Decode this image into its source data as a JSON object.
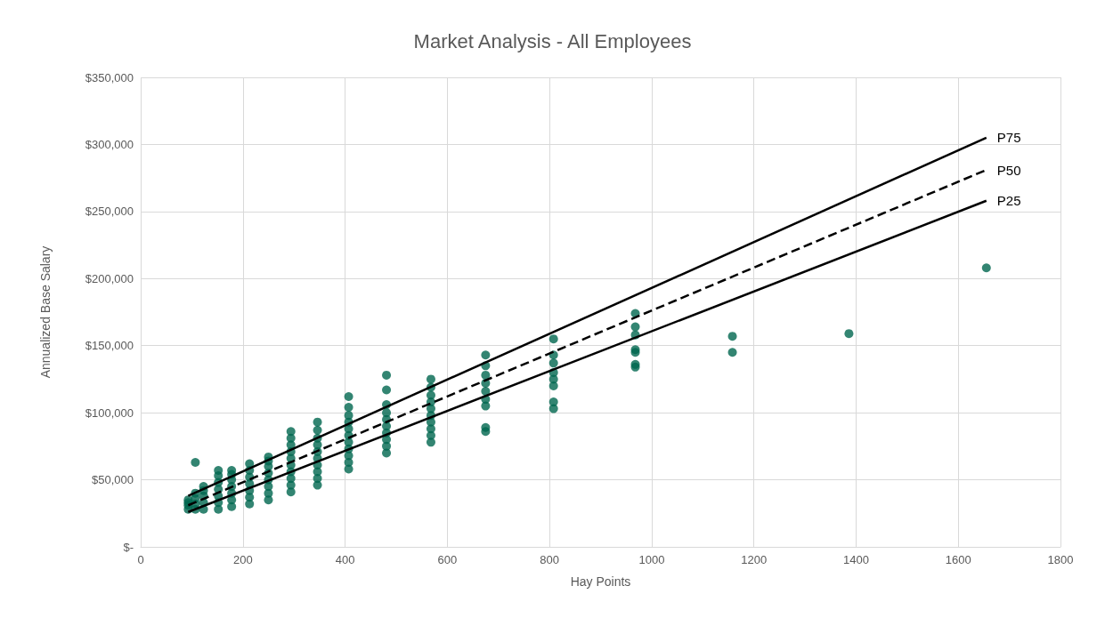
{
  "chart_data": {
    "type": "scatter",
    "title": "Market Analysis - All Employees",
    "xlabel": "Hay Points",
    "ylabel": "Annualized Base Salary",
    "xlim": [
      0,
      1800
    ],
    "xticks": [
      0,
      200,
      400,
      600,
      800,
      1000,
      1200,
      1400,
      1600,
      1800
    ],
    "ylim": [
      0,
      350000
    ],
    "yticks": [
      {
        "value": 0,
        "label": "$-"
      },
      {
        "value": 50000,
        "label": "$50,000"
      },
      {
        "value": 100000,
        "label": "$100,000"
      },
      {
        "value": 150000,
        "label": "$150,000"
      },
      {
        "value": 200000,
        "label": "$200,000"
      },
      {
        "value": 250000,
        "label": "$250,000"
      },
      {
        "value": 300000,
        "label": "$300,000"
      },
      {
        "value": 350000,
        "label": "$350,000"
      }
    ],
    "grid": true,
    "legend": false,
    "series": [
      {
        "color": "#00664f",
        "marker": "circle",
        "x": [
          93,
          93,
          93,
          93,
          107,
          107,
          107,
          107,
          107,
          123,
          123,
          123,
          123,
          123,
          152,
          152,
          152,
          152,
          152,
          152,
          152,
          178,
          178,
          178,
          178,
          178,
          178,
          178,
          213,
          213,
          213,
          213,
          213,
          213,
          213,
          250,
          250,
          250,
          250,
          250,
          250,
          250,
          250,
          294,
          294,
          294,
          294,
          294,
          294,
          294,
          294,
          294,
          294,
          346,
          346,
          346,
          346,
          346,
          346,
          346,
          346,
          346,
          346,
          407,
          407,
          407,
          407,
          407,
          407,
          407,
          407,
          407,
          407,
          407,
          481,
          481,
          481,
          481,
          481,
          481,
          481,
          481,
          481,
          481,
          568,
          568,
          568,
          568,
          568,
          568,
          568,
          568,
          568,
          568,
          675,
          675,
          675,
          675,
          675,
          675,
          675,
          675,
          675,
          808,
          808,
          808,
          808,
          808,
          808,
          808,
          808,
          968,
          968,
          968,
          968,
          968,
          968,
          968,
          1158,
          1158,
          1386,
          1655
        ],
        "values": [
          28000,
          31000,
          33000,
          35000,
          28000,
          32000,
          36000,
          40000,
          63000,
          28000,
          33000,
          38000,
          42000,
          45000,
          28000,
          33000,
          38000,
          43000,
          48000,
          53000,
          57000,
          30000,
          35000,
          40000,
          45000,
          50000,
          54000,
          57000,
          32000,
          37000,
          42000,
          47000,
          52000,
          57000,
          62000,
          35000,
          40000,
          45000,
          50000,
          55000,
          60000,
          64000,
          67000,
          41000,
          46000,
          51000,
          56000,
          61000,
          66000,
          71000,
          76000,
          81000,
          86000,
          46000,
          51000,
          56000,
          61000,
          66000,
          71000,
          76000,
          81000,
          87000,
          93000,
          58000,
          63000,
          68000,
          73000,
          78000,
          83000,
          88000,
          93000,
          98000,
          104000,
          112000,
          70000,
          75000,
          80000,
          85000,
          90000,
          95000,
          100000,
          106000,
          117000,
          128000,
          78000,
          83000,
          88000,
          93000,
          98000,
          103000,
          108000,
          113000,
          119000,
          125000,
          86000,
          89000,
          105000,
          110000,
          116000,
          122000,
          128000,
          135000,
          143000,
          103000,
          108000,
          120000,
          125000,
          130000,
          137000,
          143000,
          155000,
          134000,
          136000,
          145000,
          147000,
          158000,
          164000,
          174000,
          145000,
          157000,
          159000,
          208000
        ]
      },
      {
        "type": "line",
        "name": "P75",
        "color": "#000000",
        "marker": "none",
        "line_style": "solid",
        "x": [
          93,
          1655
        ],
        "values": [
          38000,
          305000
        ]
      },
      {
        "type": "line",
        "name": "P50",
        "color": "#000000",
        "marker": "none",
        "line_style": "dashed",
        "x": [
          93,
          1655
        ],
        "values": [
          31000,
          281000
        ]
      },
      {
        "type": "line",
        "name": "P25",
        "color": "#000000",
        "marker": "none",
        "line_style": "solid",
        "x": [
          93,
          1655
        ],
        "values": [
          26000,
          258000
        ]
      }
    ]
  }
}
